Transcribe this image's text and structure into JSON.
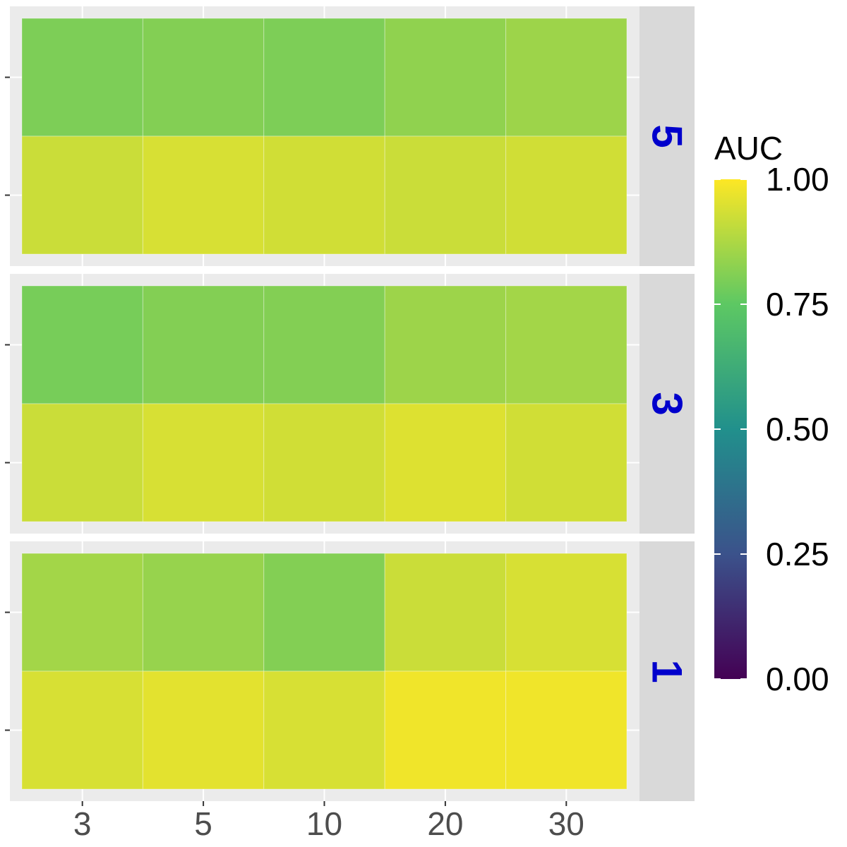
{
  "chart_data": {
    "type": "heatmap",
    "title": "",
    "xlabel": "",
    "ylabel": "",
    "x_categories": [
      "3",
      "5",
      "10",
      "20",
      "30"
    ],
    "facets": [
      {
        "label": "5",
        "rows": [
          [
            0.8,
            0.81,
            0.8,
            0.83,
            0.85
          ],
          [
            0.92,
            0.94,
            0.93,
            0.92,
            0.93
          ]
        ]
      },
      {
        "label": "3",
        "rows": [
          [
            0.79,
            0.81,
            0.81,
            0.85,
            0.86
          ],
          [
            0.92,
            0.94,
            0.93,
            0.95,
            0.93
          ]
        ]
      },
      {
        "label": "1",
        "rows": [
          [
            0.86,
            0.84,
            0.81,
            0.92,
            0.94
          ],
          [
            0.94,
            0.96,
            0.94,
            0.98,
            0.98
          ]
        ]
      }
    ],
    "legend": {
      "title": "AUC",
      "min": 0,
      "max": 1,
      "ticks": [
        "0.00",
        "0.25",
        "0.50",
        "0.75",
        "1.00"
      ],
      "position": "right",
      "palette": [
        "#440154",
        "#3B528B",
        "#21908C",
        "#5DC863",
        "#FDE725"
      ]
    },
    "grid": true,
    "colors": {
      "panel_bg": "#EBEBEB",
      "strip_bg": "#D9D9D9",
      "strip_text": "#0000CC",
      "axis_text": "#4D4D4D"
    }
  }
}
